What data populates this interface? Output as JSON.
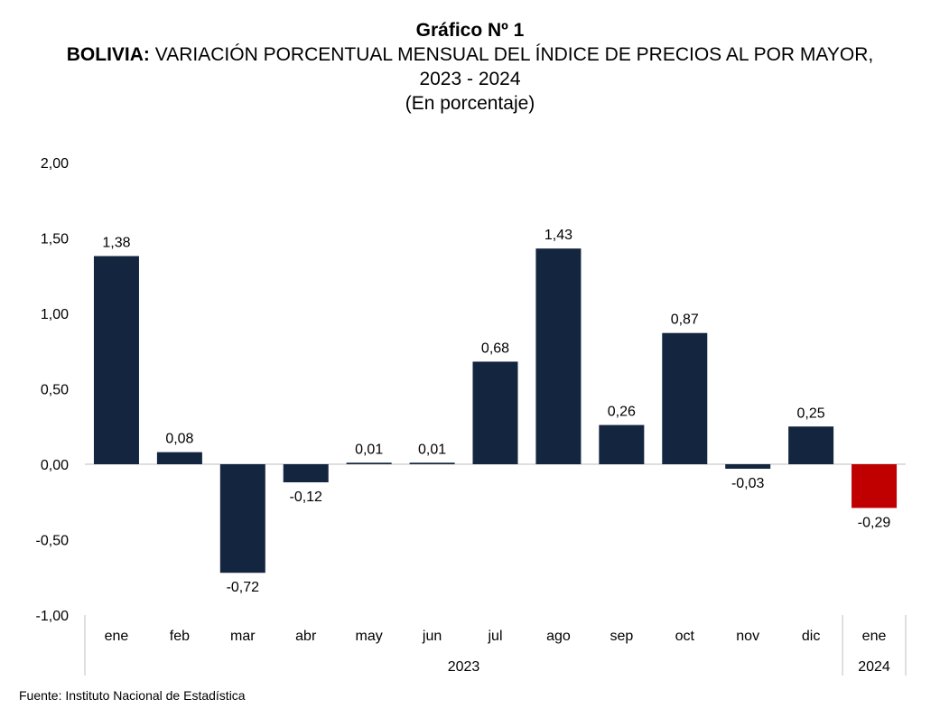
{
  "header": {
    "title": "Gráfico Nº 1",
    "subtitle_prefix": "BOLIVIA:",
    "subtitle": "VARIACIÓN PORCENTUAL MENSUAL DEL ÍNDICE DE PRECIOS AL POR MAYOR,",
    "years": "2023 - 2024",
    "unit": "(En porcentaje)"
  },
  "source": "Fuente: Instituto Nacional de Estadística",
  "chart_data": {
    "type": "bar",
    "categories": [
      "ene",
      "feb",
      "mar",
      "abr",
      "may",
      "jun",
      "jul",
      "ago",
      "sep",
      "oct",
      "nov",
      "dic",
      "ene"
    ],
    "values": [
      1.38,
      0.08,
      -0.72,
      -0.12,
      0.01,
      0.01,
      0.68,
      1.43,
      0.26,
      0.87,
      -0.03,
      0.25,
      -0.29
    ],
    "value_labels": [
      "1,38",
      "0,08",
      "-0,72",
      "-0,12",
      "0,01",
      "0,01",
      "0,68",
      "1,43",
      "0,26",
      "0,87",
      "-0,03",
      "0,25",
      "-0,29"
    ],
    "groups": [
      {
        "label": "2023",
        "count": 12
      },
      {
        "label": "2024",
        "count": 1
      }
    ],
    "ylim": [
      -1.0,
      2.0
    ],
    "yticks": [
      2.0,
      1.5,
      1.0,
      0.5,
      0.0,
      -0.5,
      -1.0
    ],
    "ytick_labels": [
      "2,00",
      "1,50",
      "1,00",
      "0,50",
      "0,00",
      "-0,50",
      "-1,00"
    ],
    "colors": {
      "bar": "#14253f",
      "highlight": "#c00000",
      "axis": "#bfbfbf"
    },
    "highlight_index": 12,
    "grid": false,
    "legend": "none"
  }
}
